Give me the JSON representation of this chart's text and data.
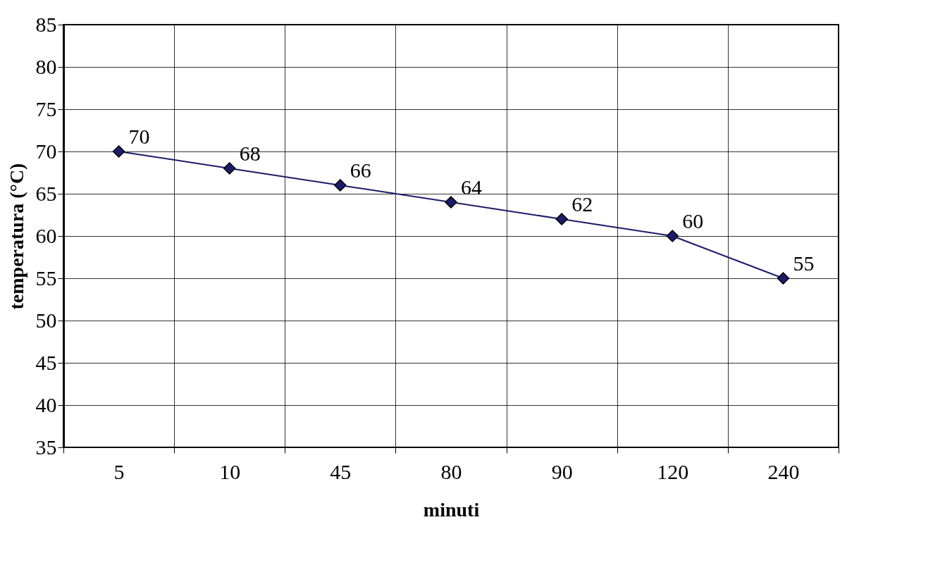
{
  "chart_data": {
    "type": "line",
    "xlabel": "minuti",
    "ylabel": "temperatura (°C)",
    "categories": [
      "5",
      "10",
      "45",
      "80",
      "90",
      "120",
      "240"
    ],
    "series": [
      {
        "color": "#1c1c6b",
        "values": [
          70,
          68,
          66,
          64,
          62,
          60,
          55
        ]
      }
    ],
    "ylim": [
      35,
      85
    ],
    "yticks": [
      35,
      40,
      45,
      50,
      55,
      60,
      65,
      70,
      75,
      80,
      85
    ],
    "grid": true,
    "marker": "diamond",
    "data_labels": true,
    "line_style": "solid"
  }
}
